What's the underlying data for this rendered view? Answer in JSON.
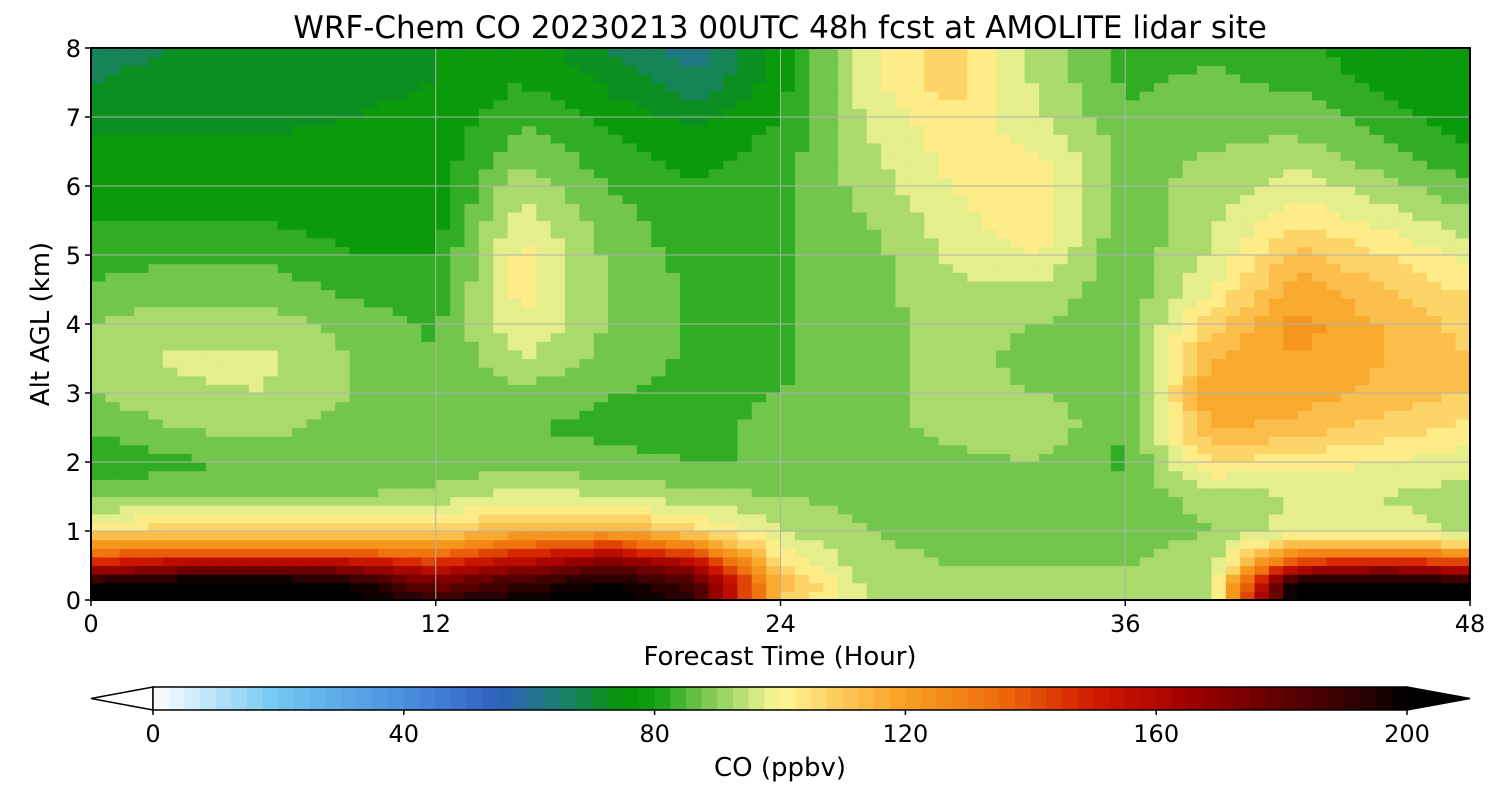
{
  "chart_data": {
    "type": "heatmap",
    "title": "WRF-Chem CO  20230213 00UTC 48h fcst at AMOLITE lidar site",
    "xlabel": "Forecast Time (Hour)",
    "ylabel": "Alt AGL (km)",
    "xlim": [
      0,
      48
    ],
    "ylim": [
      0,
      8
    ],
    "x_ticks": [
      0,
      12,
      24,
      36,
      48
    ],
    "y_ticks": [
      0,
      1,
      2,
      3,
      4,
      5,
      6,
      7,
      8
    ],
    "grid": true,
    "x": [
      0,
      3,
      6,
      9,
      12,
      15,
      18,
      21,
      24,
      27,
      30,
      33,
      36,
      39,
      42,
      45,
      48
    ],
    "y": [
      0,
      0.25,
      0.5,
      0.75,
      1,
      1.5,
      2,
      2.5,
      3,
      3.5,
      4,
      4.5,
      5,
      5.5,
      6,
      6.5,
      7,
      7.5,
      8
    ],
    "z": [
      [
        210,
        210,
        210,
        205,
        190,
        200,
        205,
        190,
        110,
        95,
        92,
        92,
        92,
        93,
        210,
        210,
        210
      ],
      [
        200,
        205,
        205,
        200,
        175,
        190,
        200,
        185,
        115,
        93,
        91,
        91,
        91,
        92,
        205,
        205,
        200
      ],
      [
        155,
        165,
        170,
        165,
        150,
        165,
        180,
        165,
        105,
        92,
        90,
        90,
        90,
        92,
        150,
        160,
        150
      ],
      [
        125,
        130,
        130,
        128,
        125,
        140,
        150,
        130,
        100,
        91,
        89,
        89,
        89,
        92,
        118,
        120,
        112
      ],
      [
        105,
        108,
        110,
        108,
        108,
        115,
        118,
        106,
        95,
        90,
        88,
        88,
        87,
        90,
        98,
        97,
        94
      ],
      [
        88,
        90,
        90,
        90,
        92,
        98,
        95,
        92,
        90,
        88,
        86,
        87,
        86,
        92,
        95,
        95,
        92
      ],
      [
        80,
        84,
        85,
        85,
        86,
        88,
        86,
        85,
        85,
        86,
        88,
        90,
        84,
        105,
        102,
        100,
        97
      ],
      [
        86,
        90,
        92,
        88,
        86,
        85,
        84,
        84,
        86,
        88,
        92,
        94,
        85,
        116,
        113,
        108,
        103
      ],
      [
        90,
        94,
        95,
        90,
        85,
        88,
        85,
        84,
        85,
        88,
        92,
        90,
        86,
        120,
        118,
        113,
        110
      ],
      [
        92,
        96,
        96,
        90,
        85,
        95,
        88,
        84,
        84,
        88,
        92,
        88,
        86,
        115,
        120,
        115,
        110
      ],
      [
        90,
        93,
        93,
        88,
        84,
        100,
        90,
        84,
        84,
        88,
        92,
        90,
        86,
        108,
        122,
        115,
        108
      ],
      [
        86,
        88,
        88,
        84,
        82,
        102,
        90,
        84,
        84,
        88,
        94,
        94,
        86,
        100,
        118,
        110,
        104
      ],
      [
        82,
        84,
        84,
        80,
        80,
        102,
        89,
        83,
        84,
        88,
        96,
        100,
        86,
        96,
        112,
        105,
        98
      ],
      [
        80,
        80,
        80,
        78,
        78,
        98,
        87,
        82,
        84,
        90,
        98,
        104,
        86,
        94,
        104,
        98,
        92
      ],
      [
        78,
        78,
        78,
        77,
        77,
        94,
        85,
        80,
        84,
        92,
        100,
        104,
        88,
        92,
        98,
        92,
        86
      ],
      [
        76,
        76,
        76,
        76,
        77,
        88,
        82,
        78,
        82,
        94,
        102,
        100,
        88,
        90,
        92,
        86,
        80
      ],
      [
        74,
        74,
        74,
        75,
        76,
        84,
        78,
        74,
        80,
        96,
        104,
        96,
        86,
        88,
        88,
        82,
        77
      ],
      [
        70,
        72,
        73,
        74,
        75,
        80,
        74,
        66,
        78,
        98,
        108,
        94,
        84,
        86,
        84,
        78,
        76
      ],
      [
        68,
        70,
        72,
        74,
        75,
        78,
        70,
        62,
        76,
        98,
        108,
        92,
        84,
        84,
        82,
        76,
        75
      ]
    ],
    "colorbar": {
      "label": "CO  (ppbv)",
      "ticks": [
        0,
        40,
        80,
        120,
        160,
        200
      ],
      "range": [
        0,
        200
      ],
      "extend": "both",
      "colormap": [
        [
          0,
          "#ffffff"
        ],
        [
          20,
          "#70c6f2"
        ],
        [
          40,
          "#4a8fdc"
        ],
        [
          55,
          "#3060c0"
        ],
        [
          65,
          "#1a7f70"
        ],
        [
          75,
          "#069406"
        ],
        [
          80,
          "#10a010"
        ],
        [
          88,
          "#78c850"
        ],
        [
          95,
          "#c8e47c"
        ],
        [
          100,
          "#fff898"
        ],
        [
          110,
          "#fcc858"
        ],
        [
          120,
          "#f7a020"
        ],
        [
          135,
          "#ee6c0c"
        ],
        [
          150,
          "#d21a00"
        ],
        [
          165,
          "#a00000"
        ],
        [
          180,
          "#600000"
        ],
        [
          195,
          "#200000"
        ],
        [
          200,
          "#000000"
        ]
      ]
    }
  }
}
